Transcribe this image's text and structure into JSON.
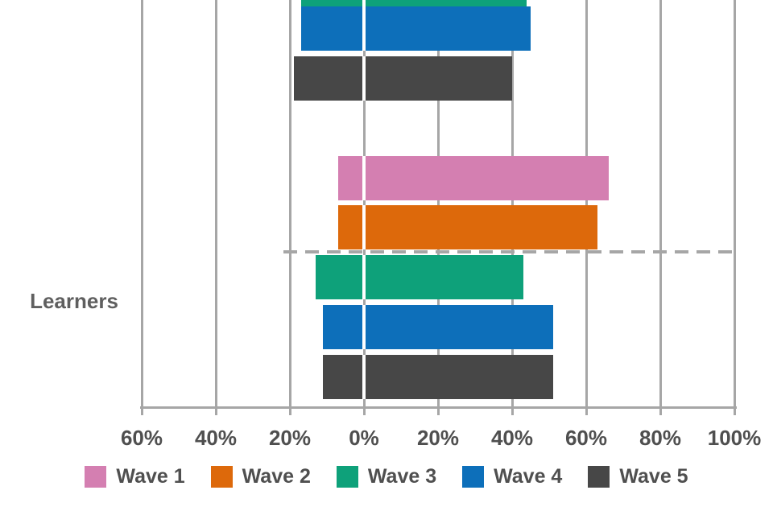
{
  "chart_data": {
    "type": "bar",
    "orientation": "horizontal-diverging",
    "title": "",
    "grid": true,
    "grid_color": "#a6a6a6",
    "x_axis": {
      "min": -60,
      "max": 100,
      "unit": "%",
      "tick_values": [
        -60,
        -40,
        -20,
        0,
        20,
        40,
        60,
        80,
        100
      ],
      "tick_labels": [
        "60%",
        "40%",
        "20%",
        "0%",
        "20%",
        "40%",
        "60%",
        "80%",
        "100%"
      ]
    },
    "legend": {
      "position": "bottom",
      "entries": [
        {
          "label": "Wave 1",
          "color": "#d47fb1"
        },
        {
          "label": "Wave 2",
          "color": "#dd690b"
        },
        {
          "label": "Wave 3",
          "color": "#0ea17a"
        },
        {
          "label": "Wave 4",
          "color": "#0d6fba"
        },
        {
          "label": "Wave 5",
          "color": "#474747"
        }
      ]
    },
    "groups": [
      {
        "label": "",
        "clipped_top": true,
        "bars": [
          {
            "series": "Wave 3",
            "negative_pct": -17,
            "positive_pct": 44
          },
          {
            "series": "Wave 4",
            "negative_pct": -17,
            "positive_pct": 45
          },
          {
            "series": "Wave 5",
            "negative_pct": -19,
            "positive_pct": 40
          }
        ]
      },
      {
        "label": "Learners",
        "bars": [
          {
            "series": "Wave 1",
            "negative_pct": -7,
            "positive_pct": 66
          },
          {
            "series": "Wave 2",
            "negative_pct": -7,
            "positive_pct": 63
          },
          {
            "series": "Wave 3",
            "negative_pct": -13,
            "positive_pct": 43
          },
          {
            "series": "Wave 4",
            "negative_pct": -11,
            "positive_pct": 51
          },
          {
            "series": "Wave 5",
            "negative_pct": -11,
            "positive_pct": 51
          }
        ]
      }
    ],
    "separator": {
      "style": "dashed",
      "color": "#a6a6a6",
      "between": "Wave 2 and Wave 3 bars of the Learners group"
    }
  }
}
